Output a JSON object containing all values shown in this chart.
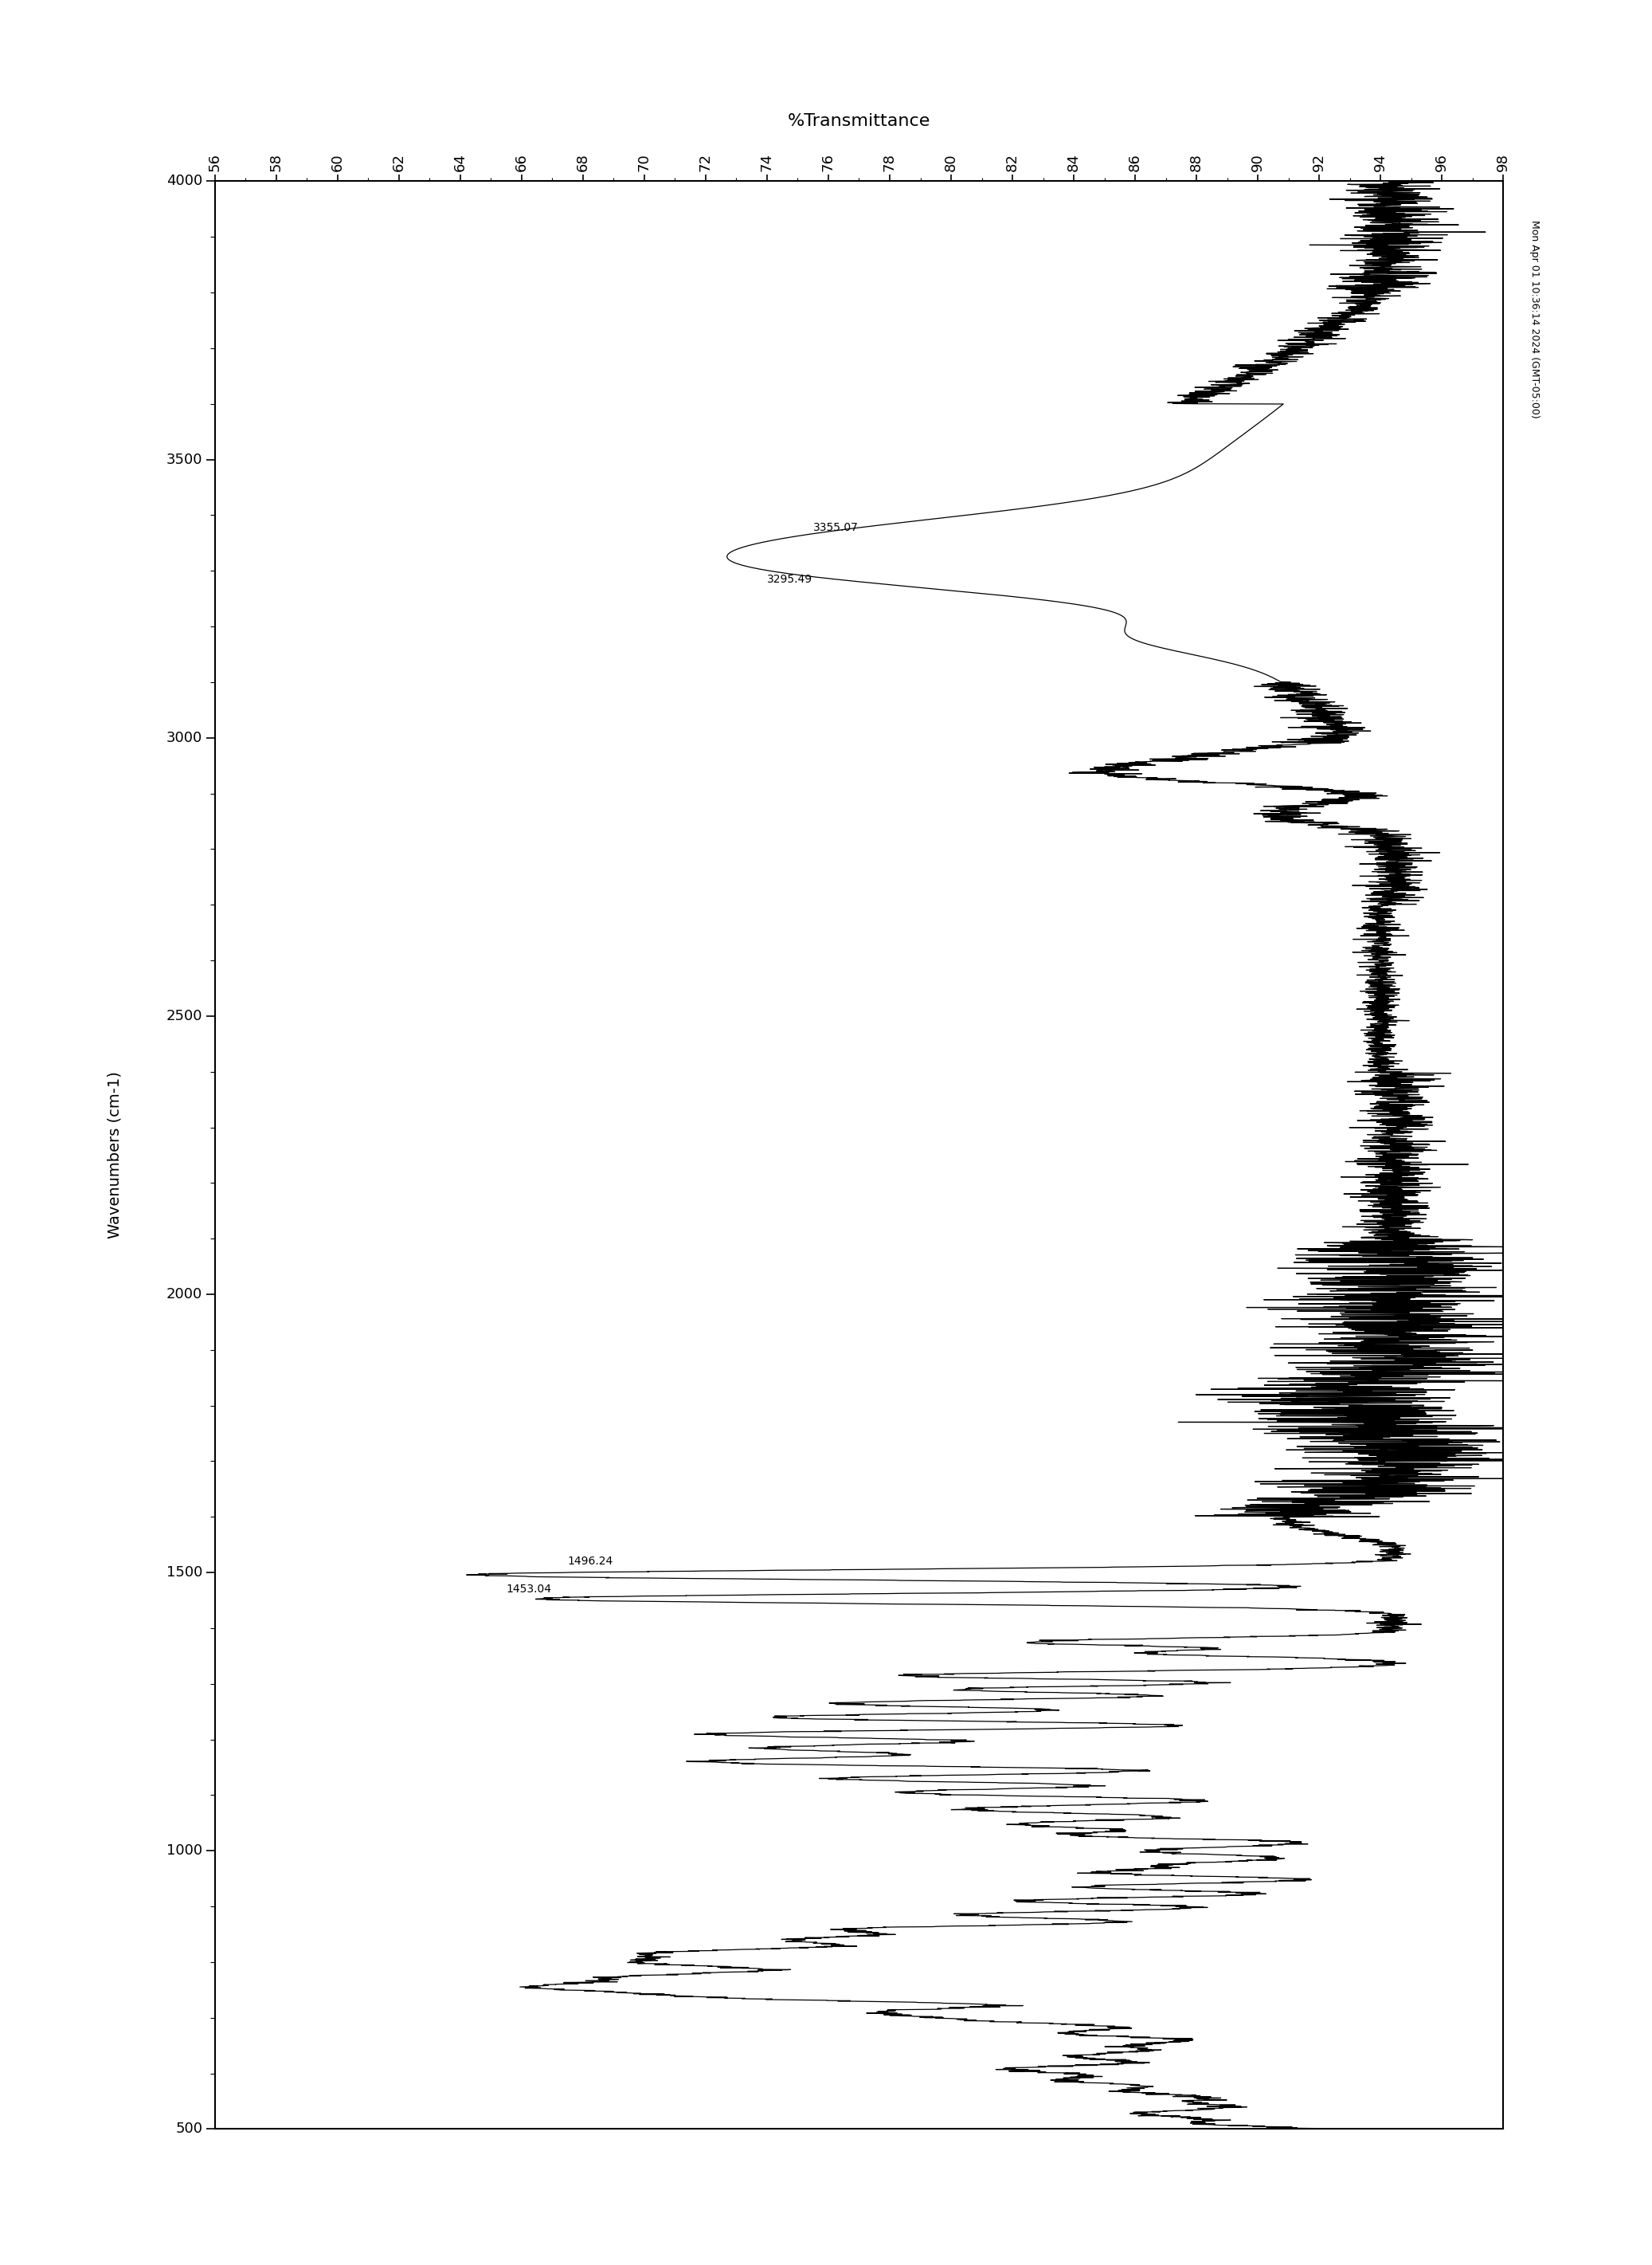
{
  "title": "%Transmittance",
  "xlabel_rotated": "Wavenumbers (cm-1)",
  "xmin_T": 56,
  "xmax_T": 98,
  "ymin_wn": 500,
  "ymax_wn": 4000,
  "x_ticks_T": [
    56,
    58,
    60,
    62,
    64,
    66,
    68,
    70,
    72,
    74,
    76,
    78,
    80,
    82,
    84,
    86,
    88,
    90,
    92,
    94,
    96,
    98
  ],
  "y_ticks_wn": [
    500,
    1000,
    1500,
    2000,
    2500,
    3000,
    3500,
    4000
  ],
  "annotations": [
    {
      "wn": 3355.07,
      "T": 78.5,
      "label": "3355.07",
      "label_wn": 3360,
      "label_T": 75
    },
    {
      "wn": 3295.49,
      "T": 77.0,
      "label": "3295.49",
      "label_wn": 3290,
      "label_T": 73
    },
    {
      "wn": 1496.24,
      "T": 63.5,
      "label": "1496.24",
      "label_wn": 1510,
      "label_T": 67
    },
    {
      "wn": 1453.04,
      "T": 64.0,
      "label": "1453.04",
      "label_wn": 1480,
      "label_T": 64
    }
  ],
  "timestamp": "Mon Apr 01 10:36:14 2024 (GMT-05:00)",
  "bg_color": "#ffffff",
  "line_color": "#000000",
  "line_width": 0.9
}
